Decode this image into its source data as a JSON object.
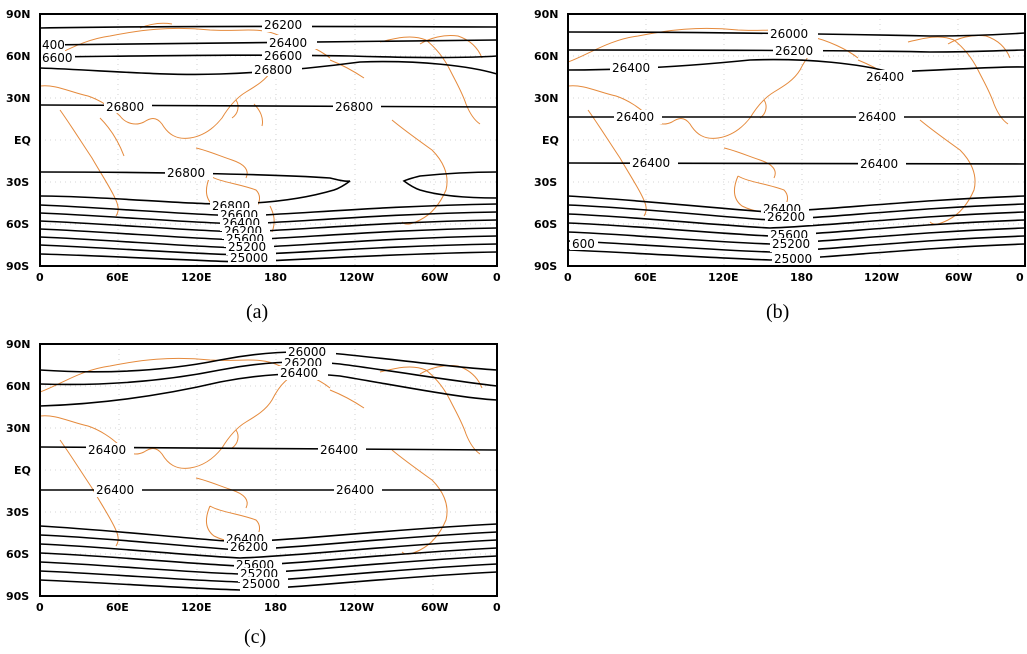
{
  "panels": [
    {
      "id": "a",
      "caption": "(a)",
      "lat_labels": [
        "90N",
        "60N",
        "30N",
        "EQ",
        "30S",
        "60S",
        "90S"
      ],
      "lon_labels": [
        "0",
        "60E",
        "120E",
        "180",
        "120W",
        "60W",
        "0"
      ],
      "contour_labels": [
        "26200",
        "26400",
        "26600",
        "26800",
        "26800",
        "26800",
        "26800",
        "26800",
        "26600",
        "26400",
        "26200",
        "25600",
        "25200",
        "25000",
        "400",
        "6600"
      ]
    },
    {
      "id": "b",
      "caption": "(b)",
      "lat_labels": [
        "90N",
        "60N",
        "30N",
        "EQ",
        "30S",
        "60S",
        "90S"
      ],
      "lon_labels": [
        "0",
        "60E",
        "120E",
        "180",
        "120W",
        "60W",
        "0"
      ],
      "contour_labels": [
        "26000",
        "26200",
        "26400",
        "26400",
        "26400",
        "26400",
        "26400",
        "26400",
        "26400",
        "26200",
        "25600",
        "25200",
        "25000",
        "600"
      ]
    },
    {
      "id": "c",
      "caption": "(c)",
      "lat_labels": [
        "90N",
        "60N",
        "30N",
        "EQ",
        "30S",
        "60S",
        "90S"
      ],
      "lon_labels": [
        "0",
        "60E",
        "120E",
        "180",
        "120W",
        "60W",
        "0"
      ],
      "contour_labels": [
        "26000",
        "26200",
        "26400",
        "26400",
        "26400",
        "26400",
        "26400",
        "26400",
        "26200",
        "25600",
        "25200",
        "25000"
      ]
    }
  ],
  "colors": {
    "contour": "#000000",
    "coastline": "#e58a3c",
    "grid": "#c8c8c8"
  }
}
